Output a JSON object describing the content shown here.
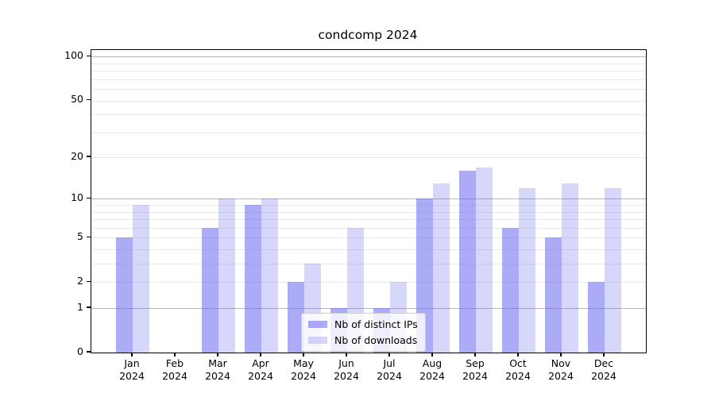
{
  "title": "condcomp 2024",
  "chart_data": {
    "type": "bar",
    "title": "condcomp 2024",
    "xlabel": "",
    "ylabel": "",
    "y_scale": "log1p (position proportional to log10(1+y))",
    "ylim": [
      0,
      111
    ],
    "yticks": [
      0,
      1,
      2,
      5,
      10,
      20,
      50,
      100
    ],
    "major_gridlines": [
      1,
      10,
      100
    ],
    "minor_gridlines": [
      2,
      3,
      4,
      5,
      6,
      7,
      8,
      9,
      20,
      30,
      40,
      50,
      60,
      70,
      80,
      90
    ],
    "grid": "on",
    "legend_position": "inside lower center",
    "categories": [
      "Jan 2024",
      "Feb 2024",
      "Mar 2024",
      "Apr 2024",
      "May 2024",
      "Jun 2024",
      "Jul 2024",
      "Aug 2024",
      "Sep 2024",
      "Oct 2024",
      "Nov 2024",
      "Dec 2024"
    ],
    "series": [
      {
        "name": "Nb of distinct IPs",
        "fill": "rgba(102,102,238,0.55)",
        "rendered_hex": "#a8a8fa",
        "values": [
          5,
          0,
          6,
          9,
          2,
          1,
          1,
          10,
          16,
          6,
          5,
          2
        ]
      },
      {
        "name": "Nb of downloads",
        "fill": "rgba(102,102,238,0.26)",
        "rendered_hex": "#d8d8fb",
        "values": [
          9,
          0,
          10,
          10,
          3,
          6,
          2,
          13,
          17,
          12,
          13,
          12
        ]
      }
    ]
  },
  "colors": {
    "background": "#ffffff",
    "spine": "#000000",
    "grid_major": "#b8b8b8",
    "grid_minor": "#eaeaea",
    "legend_border": "#cccccc",
    "text": "#000000"
  }
}
